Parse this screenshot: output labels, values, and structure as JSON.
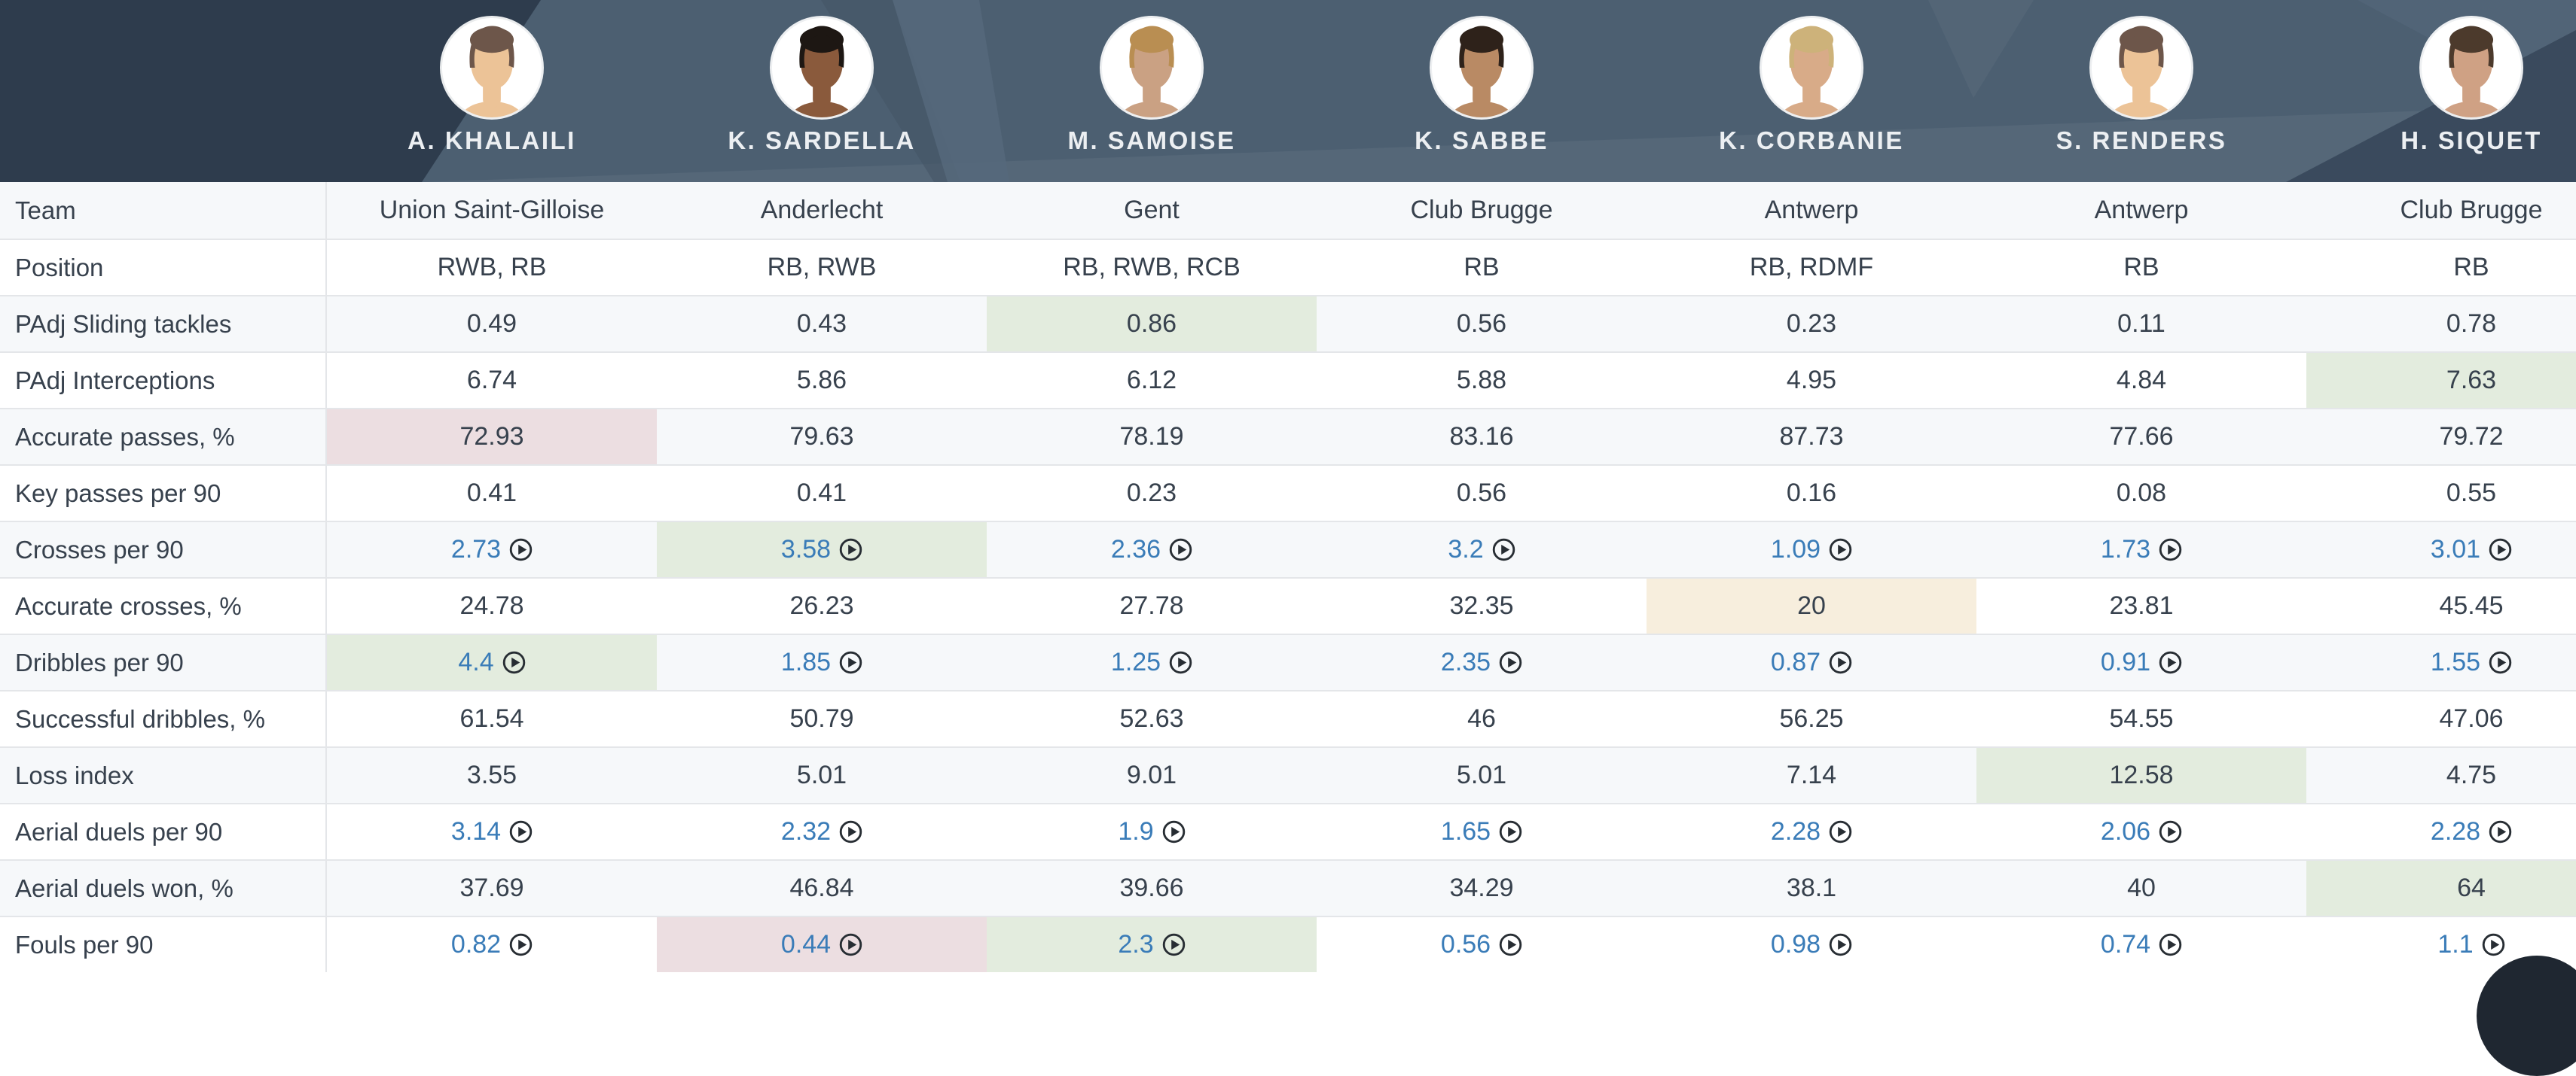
{
  "header": {
    "players": [
      {
        "name": "A. KHALAILI",
        "avatar": "placeholder-avatar",
        "avatar_skin": "#ecc397",
        "avatar_hair": "#6d564a"
      },
      {
        "name": "K. SARDELLA",
        "avatar": "photo-avatar",
        "avatar_skin": "#8a5a3c",
        "avatar_hair": "#1d1713"
      },
      {
        "name": "M. SAMOISE",
        "avatar": "photo-avatar",
        "avatar_skin": "#caa183",
        "avatar_hair": "#b98e52"
      },
      {
        "name": "K. SABBE",
        "avatar": "photo-avatar",
        "avatar_skin": "#b98a64",
        "avatar_hair": "#2e221a"
      },
      {
        "name": "K. CORBANIE",
        "avatar": "photo-avatar",
        "avatar_skin": "#d8ab88",
        "avatar_hair": "#cdb27a"
      },
      {
        "name": "S. RENDERS",
        "avatar": "placeholder-avatar",
        "avatar_skin": "#ecc397",
        "avatar_hair": "#6d564a"
      },
      {
        "name": "H. SIQUET",
        "avatar": "photo-avatar",
        "avatar_skin": "#cfa184",
        "avatar_hair": "#4c3a2c"
      }
    ]
  },
  "table": {
    "rows": [
      {
        "label": "Team",
        "values": [
          {
            "t": "Union Saint-Gilloise"
          },
          {
            "t": "Anderlecht"
          },
          {
            "t": "Gent"
          },
          {
            "t": "Club Brugge"
          },
          {
            "t": "Antwerp"
          },
          {
            "t": "Antwerp"
          },
          {
            "t": "Club Brugge"
          }
        ]
      },
      {
        "label": "Position",
        "values": [
          {
            "t": "RWB, RB"
          },
          {
            "t": "RB, RWB"
          },
          {
            "t": "RB, RWB, RCB"
          },
          {
            "t": "RB"
          },
          {
            "t": "RB, RDMF"
          },
          {
            "t": "RB"
          },
          {
            "t": "RB"
          }
        ]
      },
      {
        "label": "PAdj Sliding tackles",
        "values": [
          {
            "t": "0.49"
          },
          {
            "t": "0.43"
          },
          {
            "t": "0.86",
            "hl": "green"
          },
          {
            "t": "0.56"
          },
          {
            "t": "0.23"
          },
          {
            "t": "0.11"
          },
          {
            "t": "0.78"
          }
        ]
      },
      {
        "label": "PAdj Interceptions",
        "values": [
          {
            "t": "6.74"
          },
          {
            "t": "5.86"
          },
          {
            "t": "6.12"
          },
          {
            "t": "5.88"
          },
          {
            "t": "4.95"
          },
          {
            "t": "4.84"
          },
          {
            "t": "7.63",
            "hl": "green"
          }
        ]
      },
      {
        "label": "Accurate passes, %",
        "values": [
          {
            "t": "72.93",
            "hl": "red"
          },
          {
            "t": "79.63"
          },
          {
            "t": "78.19"
          },
          {
            "t": "83.16"
          },
          {
            "t": "87.73"
          },
          {
            "t": "77.66"
          },
          {
            "t": "79.72"
          }
        ]
      },
      {
        "label": "Key passes per 90",
        "values": [
          {
            "t": "0.41"
          },
          {
            "t": "0.41"
          },
          {
            "t": "0.23"
          },
          {
            "t": "0.56"
          },
          {
            "t": "0.16"
          },
          {
            "t": "0.08"
          },
          {
            "t": "0.55"
          }
        ]
      },
      {
        "label": "Crosses per 90",
        "values": [
          {
            "t": "2.73",
            "play": true
          },
          {
            "t": "3.58",
            "play": true,
            "hl": "green"
          },
          {
            "t": "2.36",
            "play": true
          },
          {
            "t": "3.2",
            "play": true
          },
          {
            "t": "1.09",
            "play": true
          },
          {
            "t": "1.73",
            "play": true
          },
          {
            "t": "3.01",
            "play": true
          }
        ]
      },
      {
        "label": "Accurate crosses, %",
        "values": [
          {
            "t": "24.78"
          },
          {
            "t": "26.23"
          },
          {
            "t": "27.78"
          },
          {
            "t": "32.35"
          },
          {
            "t": "20",
            "hl": "orange"
          },
          {
            "t": "23.81"
          },
          {
            "t": "45.45"
          }
        ]
      },
      {
        "label": "Dribbles per 90",
        "values": [
          {
            "t": "4.4",
            "play": true,
            "hl": "green"
          },
          {
            "t": "1.85",
            "play": true
          },
          {
            "t": "1.25",
            "play": true
          },
          {
            "t": "2.35",
            "play": true
          },
          {
            "t": "0.87",
            "play": true
          },
          {
            "t": "0.91",
            "play": true
          },
          {
            "t": "1.55",
            "play": true
          }
        ]
      },
      {
        "label": "Successful dribbles, %",
        "values": [
          {
            "t": "61.54"
          },
          {
            "t": "50.79"
          },
          {
            "t": "52.63"
          },
          {
            "t": "46"
          },
          {
            "t": "56.25"
          },
          {
            "t": "54.55"
          },
          {
            "t": "47.06"
          }
        ]
      },
      {
        "label": "Loss index",
        "values": [
          {
            "t": "3.55"
          },
          {
            "t": "5.01"
          },
          {
            "t": "9.01"
          },
          {
            "t": "5.01"
          },
          {
            "t": "7.14"
          },
          {
            "t": "12.58",
            "hl": "green"
          },
          {
            "t": "4.75"
          }
        ]
      },
      {
        "label": "Aerial duels per 90",
        "values": [
          {
            "t": "3.14",
            "play": true
          },
          {
            "t": "2.32",
            "play": true
          },
          {
            "t": "1.9",
            "play": true
          },
          {
            "t": "1.65",
            "play": true
          },
          {
            "t": "2.28",
            "play": true
          },
          {
            "t": "2.06",
            "play": true
          },
          {
            "t": "2.28",
            "play": true
          }
        ]
      },
      {
        "label": "Aerial duels won, %",
        "values": [
          {
            "t": "37.69"
          },
          {
            "t": "46.84"
          },
          {
            "t": "39.66"
          },
          {
            "t": "34.29"
          },
          {
            "t": "38.1"
          },
          {
            "t": "40"
          },
          {
            "t": "64",
            "hl": "green"
          }
        ]
      },
      {
        "label": "Fouls per 90",
        "values": [
          {
            "t": "0.82",
            "play": true
          },
          {
            "t": "0.44",
            "play": true,
            "hl": "red"
          },
          {
            "t": "2.3",
            "play": true,
            "hl": "green"
          },
          {
            "t": "0.56",
            "play": true
          },
          {
            "t": "0.98",
            "play": true
          },
          {
            "t": "0.74",
            "play": true
          },
          {
            "t": "1.1",
            "play": true
          }
        ]
      }
    ]
  },
  "colors": {
    "header_base": "#4c5f71",
    "header_dark": "#2e3c4d",
    "header_dark_right": "#3a4a5d",
    "header_light_sliver": "#56687b",
    "highlight_green": "#e3ecde",
    "highlight_red": "#ecdee1",
    "highlight_orange": "#f7eedd",
    "link_blue": "#3a7cb8",
    "row_alt": "#f6f8fa",
    "text_dark": "#37414d",
    "chat_bubble": "#1f2731"
  }
}
